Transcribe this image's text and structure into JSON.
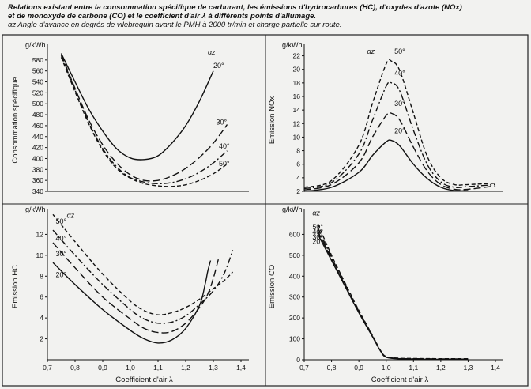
{
  "caption": {
    "line1": "Relations existant entre la consommation spécifique de carburant, les émissions d'hydrocarbures (HC), d'oxydes d'azote (NOx)",
    "line2": "et de monoxyde de carbone (CO) et le coefficient d'air λ à différents points d'allumage.",
    "line3": "αz Angle d'avance en degrés de vilebrequin avant le PMH à 2000 tr/min et charge partielle sur route."
  },
  "chart_data": [
    {
      "id": "consommation",
      "type": "line",
      "xlabel": "",
      "ylabel": "Consommation spécifique",
      "unit": "g/kWh",
      "xlim": [
        0.7,
        1.4
      ],
      "ylim": [
        340,
        600
      ],
      "xticks": [],
      "yticks": [
        340,
        360,
        380,
        400,
        420,
        440,
        460,
        480,
        500,
        520,
        540,
        560,
        580
      ],
      "legend_title": "αz",
      "series": [
        {
          "name": "20°",
          "x": [
            0.75,
            0.8,
            0.85,
            0.9,
            0.95,
            1.0,
            1.05,
            1.1,
            1.15,
            1.2,
            1.25,
            1.3
          ],
          "y": [
            592,
            540,
            490,
            450,
            418,
            401,
            398,
            405,
            428,
            460,
            505,
            560
          ]
        },
        {
          "name": "30°",
          "x": [
            0.75,
            0.8,
            0.85,
            0.9,
            0.95,
            1.0,
            1.05,
            1.1,
            1.15,
            1.2,
            1.25,
            1.3,
            1.35
          ],
          "y": [
            590,
            528,
            470,
            425,
            392,
            370,
            360,
            360,
            368,
            382,
            402,
            428,
            462
          ]
        },
        {
          "name": "40°",
          "x": [
            0.75,
            0.8,
            0.85,
            0.9,
            0.95,
            1.0,
            1.05,
            1.1,
            1.15,
            1.2,
            1.25,
            1.3,
            1.35
          ],
          "y": [
            588,
            525,
            465,
            418,
            385,
            365,
            357,
            354,
            356,
            363,
            375,
            392,
            414
          ]
        },
        {
          "name": "50°",
          "x": [
            0.75,
            0.8,
            0.85,
            0.9,
            0.95,
            1.0,
            1.05,
            1.1,
            1.15,
            1.2,
            1.25,
            1.3,
            1.35
          ],
          "y": [
            585,
            522,
            463,
            415,
            382,
            364,
            354,
            350,
            349,
            352,
            360,
            372,
            390
          ]
        }
      ]
    },
    {
      "id": "nox",
      "type": "line",
      "xlabel": "",
      "ylabel": "Emission NOx",
      "unit": "g/kWh",
      "xlim": [
        0.7,
        1.4
      ],
      "ylim": [
        2,
        23
      ],
      "xticks": [],
      "yticks": [
        2,
        4,
        6,
        8,
        10,
        12,
        14,
        16,
        18,
        20,
        22
      ],
      "legend_title": "αz",
      "series": [
        {
          "name": "20°",
          "x": [
            0.7,
            0.8,
            0.9,
            0.95,
            1.0,
            1.02,
            1.05,
            1.1,
            1.15,
            1.2,
            1.25,
            1.3
          ],
          "y": [
            2.0,
            2.6,
            4.8,
            7.3,
            9.3,
            9.5,
            8.7,
            6.0,
            3.9,
            2.6,
            2.1,
            2.1
          ]
        },
        {
          "name": "30°",
          "x": [
            0.7,
            0.8,
            0.9,
            0.95,
            1.0,
            1.02,
            1.05,
            1.1,
            1.15,
            1.2,
            1.25,
            1.3,
            1.4
          ],
          "y": [
            2.2,
            3.0,
            6.2,
            10.0,
            13.2,
            13.5,
            12.5,
            8.5,
            5.0,
            3.0,
            2.3,
            2.3,
            2.8
          ]
        },
        {
          "name": "40°",
          "x": [
            0.7,
            0.8,
            0.9,
            0.95,
            1.0,
            1.02,
            1.05,
            1.1,
            1.15,
            1.2,
            1.25,
            1.3,
            1.4
          ],
          "y": [
            2.4,
            3.3,
            7.5,
            12.5,
            17.5,
            18.0,
            16.8,
            11.0,
            6.0,
            3.4,
            2.6,
            2.7,
            3.0
          ]
        },
        {
          "name": "50°",
          "x": [
            0.7,
            0.8,
            0.9,
            0.95,
            1.0,
            1.02,
            1.05,
            1.1,
            1.15,
            1.2,
            1.25,
            1.3,
            1.4
          ],
          "y": [
            2.6,
            3.6,
            8.8,
            15.0,
            20.8,
            21.2,
            19.8,
            13.5,
            7.2,
            4.0,
            3.0,
            3.0,
            3.2
          ]
        }
      ]
    },
    {
      "id": "hc",
      "type": "line",
      "xlabel": "Coefficient d'air λ",
      "ylabel": "Emission HC",
      "unit": "g/kWh",
      "xlim": [
        0.7,
        1.4
      ],
      "ylim": [
        0,
        14
      ],
      "xticks": [
        0.7,
        0.8,
        0.9,
        1.0,
        1.1,
        1.2,
        1.3,
        1.4
      ],
      "xtick_labels": [
        "0,7",
        "0,8",
        "0,9",
        "1,0",
        "1,1",
        "1,2",
        "1,3",
        "1,4"
      ],
      "yticks": [
        2,
        4,
        6,
        8,
        10,
        12
      ],
      "legend_title": "αz",
      "series": [
        {
          "name": "20°",
          "x": [
            0.72,
            0.8,
            0.9,
            1.0,
            1.05,
            1.1,
            1.15,
            1.2,
            1.25,
            1.27,
            1.28,
            1.29
          ],
          "y": [
            9.3,
            7.2,
            4.8,
            2.8,
            2.0,
            1.6,
            1.9,
            3.0,
            5.2,
            7.2,
            8.5,
            9.5
          ]
        },
        {
          "name": "30°",
          "x": [
            0.72,
            0.8,
            0.9,
            1.0,
            1.05,
            1.1,
            1.15,
            1.2,
            1.25,
            1.28,
            1.3,
            1.32
          ],
          "y": [
            11.2,
            8.8,
            6.0,
            3.9,
            3.0,
            2.6,
            2.7,
            3.5,
            5.0,
            6.3,
            7.8,
            9.8
          ]
        },
        {
          "name": "40°",
          "x": [
            0.72,
            0.8,
            0.9,
            1.0,
            1.05,
            1.1,
            1.15,
            1.2,
            1.25,
            1.3,
            1.34,
            1.37
          ],
          "y": [
            12.4,
            10.0,
            7.2,
            4.8,
            3.9,
            3.5,
            3.6,
            4.2,
            5.3,
            6.6,
            8.3,
            10.5
          ]
        },
        {
          "name": "50°",
          "x": [
            0.72,
            0.8,
            0.9,
            1.0,
            1.05,
            1.1,
            1.15,
            1.2,
            1.25,
            1.3,
            1.34,
            1.37
          ],
          "y": [
            13.9,
            11.3,
            8.2,
            5.6,
            4.7,
            4.3,
            4.5,
            5.0,
            5.8,
            6.8,
            7.6,
            8.4
          ]
        }
      ]
    },
    {
      "id": "co",
      "type": "line",
      "xlabel": "Coefficient d'air λ",
      "ylabel": "Emission CO",
      "unit": "g/kWh",
      "xlim": [
        0.7,
        1.4
      ],
      "ylim": [
        0,
        700
      ],
      "xticks": [
        0.7,
        0.8,
        0.9,
        1.0,
        1.1,
        1.2,
        1.3,
        1.4
      ],
      "xtick_labels": [
        "0,7",
        "0,8",
        "0,9",
        "1,0",
        "1,1",
        "1,2",
        "1,3",
        "1,4"
      ],
      "yticks": [
        0,
        100,
        200,
        300,
        400,
        500,
        600
      ],
      "legend_title": "αz",
      "series": [
        {
          "name": "20°",
          "x": [
            0.75,
            0.8,
            0.85,
            0.9,
            0.95,
            0.98,
            1.0,
            1.05,
            1.1,
            1.2,
            1.3
          ],
          "y": [
            600,
            475,
            350,
            225,
            110,
            40,
            12,
            4,
            3,
            2,
            2
          ]
        },
        {
          "name": "30°",
          "x": [
            0.75,
            0.8,
            0.85,
            0.9,
            0.95,
            0.98,
            1.0,
            1.05,
            1.1,
            1.2,
            1.3
          ],
          "y": [
            615,
            482,
            355,
            228,
            112,
            41,
            13,
            5,
            4,
            3,
            3
          ]
        },
        {
          "name": "40°",
          "x": [
            0.75,
            0.8,
            0.85,
            0.9,
            0.95,
            0.98,
            1.0,
            1.05,
            1.1,
            1.2,
            1.3
          ],
          "y": [
            630,
            490,
            360,
            232,
            114,
            42,
            14,
            6,
            5,
            4,
            4
          ]
        },
        {
          "name": "50°",
          "x": [
            0.75,
            0.8,
            0.85,
            0.9,
            0.95,
            0.98,
            1.0,
            1.05,
            1.1,
            1.2,
            1.3
          ],
          "y": [
            650,
            500,
            366,
            236,
            116,
            43,
            15,
            7,
            6,
            5,
            5
          ]
        }
      ]
    }
  ]
}
